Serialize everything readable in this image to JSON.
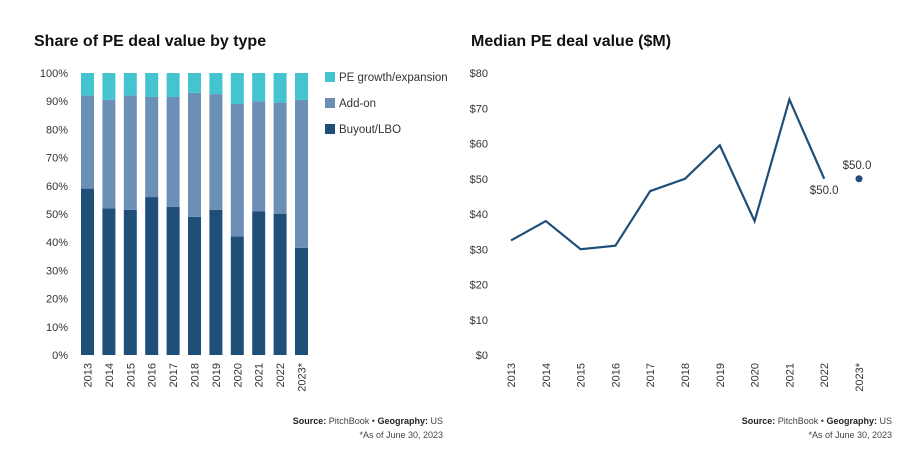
{
  "colors": {
    "buyout": "#1f4e79",
    "addon": "#6b8fb5",
    "growth": "#44c4cf",
    "line": "#1f4e79"
  },
  "left": {
    "title": "Share of PE deal value by type",
    "source_label": "Source:",
    "source_value": "PitchBook",
    "bullet": "•",
    "geo_label": "Geography:",
    "geo_value": "US",
    "note": "*As of June 30, 2023"
  },
  "right": {
    "title": "Median PE deal value ($M)",
    "source_label": "Source:",
    "source_value": "PitchBook",
    "bullet": "•",
    "geo_label": "Geography:",
    "geo_value": "US",
    "note": "*As of June 30, 2023"
  },
  "chart_data": [
    {
      "type": "bar",
      "stacked": true,
      "title": "Share of PE deal value by type",
      "categories": [
        "2013",
        "2014",
        "2015",
        "2016",
        "2017",
        "2018",
        "2019",
        "2020",
        "2021",
        "2022",
        "2023*"
      ],
      "series": [
        {
          "name": "Buyout/LBO",
          "color": "#1f4e79",
          "values": [
            59,
            52,
            51.5,
            56,
            52.5,
            49,
            51.5,
            42,
            51,
            50,
            38
          ]
        },
        {
          "name": "Add-on",
          "color": "#6b8fb5",
          "values": [
            33,
            38.5,
            40.5,
            35.5,
            39,
            44,
            41,
            47,
            39,
            39.5,
            52.5
          ]
        },
        {
          "name": "PE growth/expansion",
          "color": "#44c4cf",
          "values": [
            8,
            9.5,
            8,
            8.5,
            8.5,
            7,
            7.5,
            11,
            10,
            10.5,
            9.5
          ]
        }
      ],
      "legend_order": [
        "PE growth/expansion",
        "Add-on",
        "Buyout/LBO"
      ],
      "ylim": [
        0,
        100
      ],
      "y_ticks": [
        "0%",
        "10%",
        "20%",
        "30%",
        "40%",
        "50%",
        "60%",
        "70%",
        "80%",
        "90%",
        "100%"
      ],
      "legend_position": "right",
      "grid": false
    },
    {
      "type": "line",
      "title": "Median PE deal value ($M)",
      "x": [
        "2013",
        "2014",
        "2015",
        "2016",
        "2017",
        "2018",
        "2019",
        "2020",
        "2021",
        "2022",
        "2023*"
      ],
      "series": [
        {
          "values": [
            32.5,
            38,
            30,
            31,
            46.5,
            50,
            59.5,
            38,
            72.5,
            50,
            null
          ]
        }
      ],
      "point_2023": 50,
      "labels": {
        "2022": "$50.0",
        "2023*": "$50.0"
      },
      "ylim": [
        0,
        80
      ],
      "y_ticks": [
        "$0",
        "$10",
        "$20",
        "$30",
        "$40",
        "$50",
        "$60",
        "$70",
        "$80"
      ],
      "grid": false
    }
  ]
}
